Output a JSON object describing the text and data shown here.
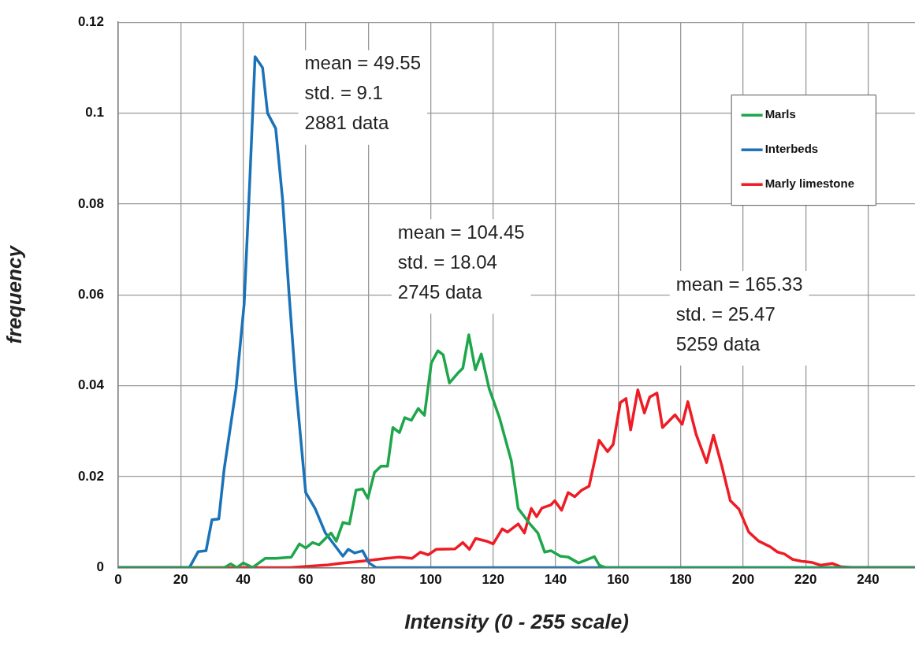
{
  "chart_data": {
    "type": "line",
    "xlabel": "Intensity (0 - 255 scale)",
    "ylabel": "frequency",
    "xlim": [
      0,
      255
    ],
    "xticks": [
      0,
      20,
      40,
      60,
      80,
      100,
      120,
      140,
      160,
      180,
      200,
      220,
      240
    ],
    "ylim": [
      0,
      0.12
    ],
    "yticks": [
      0,
      0.02,
      0.04,
      0.06,
      0.08,
      0.1,
      0.12
    ],
    "grid": true,
    "legend": "top right",
    "marker": "none",
    "line_style": "solid",
    "annotations": [
      "mean = 49.55\nstd. = 9.1\n2881 data",
      "mean = 104.45\nstd. = 18.04\n2745 data",
      "mean = 165.33\nstd. = 25.47\n5259 data"
    ],
    "series": [
      {
        "name": "Marls",
        "color": "#1ea64b",
        "x": [
          0,
          34,
          36,
          38,
          40,
          43,
          47,
          50.4,
          55.4,
          58,
          60,
          62.2,
          64.3,
          68.1,
          69.8,
          71.9,
          74,
          76.1,
          78.2,
          79.9,
          82,
          84.1,
          86.2,
          87.9,
          90,
          91.7,
          93.8,
          96,
          98,
          100.2,
          102.3,
          104,
          106,
          108.6,
          110.3,
          112.2,
          114.3,
          116.2,
          118.7,
          122,
          125.8,
          128,
          131.4,
          134.3,
          136.5,
          138.5,
          141.5,
          144,
          147.3,
          152.4,
          154,
          156,
          255
        ],
        "values": [
          0,
          0,
          0.0008,
          0,
          0.001,
          0,
          0.002,
          0.002,
          0.0023,
          0.0052,
          0.0043,
          0.0055,
          0.005,
          0.0076,
          0.0058,
          0.0099,
          0.0096,
          0.017,
          0.0173,
          0.0152,
          0.0209,
          0.0223,
          0.0223,
          0.0308,
          0.0297,
          0.033,
          0.0324,
          0.035,
          0.0335,
          0.045,
          0.0477,
          0.0468,
          0.0406,
          0.0427,
          0.0439,
          0.0512,
          0.0435,
          0.047,
          0.0394,
          0.033,
          0.0235,
          0.013,
          0.0099,
          0.0076,
          0.0034,
          0.0037,
          0.0025,
          0.0023,
          0.001,
          0.0024,
          0.0005,
          0,
          0
        ]
      },
      {
        "name": "Interbeds",
        "color": "#1a72b8",
        "x": [
          0,
          22.8,
          25.6,
          28.1,
          30,
          32.2,
          33.9,
          37.7,
          40.3,
          42.1,
          43.8,
          46.2,
          47.8,
          50.4,
          52.6,
          54.7,
          56.9,
          60,
          63,
          66.3,
          71.9,
          73.6,
          75.7,
          78.2,
          80.3,
          82.5,
          255
        ],
        "values": [
          0,
          0,
          0.0035,
          0.0037,
          0.0105,
          0.0107,
          0.0216,
          0.0393,
          0.058,
          0.085,
          0.1124,
          0.11,
          0.1,
          0.0966,
          0.081,
          0.06,
          0.0396,
          0.0165,
          0.013,
          0.0076,
          0.0025,
          0.004,
          0.0032,
          0.0037,
          0.001,
          0,
          0
        ]
      },
      {
        "name": "Marly limestone",
        "color": "#ee1c25",
        "x": [
          0,
          55,
          67.3,
          70.6,
          78.2,
          85.8,
          90,
          94,
          96.7,
          99.2,
          101.8,
          107.8,
          110.3,
          112.4,
          114.4,
          117.9,
          120,
          122.9,
          124.6,
          128,
          130,
          132.2,
          133.9,
          135.6,
          138.5,
          139.7,
          141.9,
          144,
          146.1,
          148.3,
          150.7,
          153.9,
          156.6,
          158.4,
          160.7,
          162.5,
          164,
          166.3,
          168.4,
          170.1,
          172.4,
          174.2,
          178.2,
          180.5,
          182.3,
          185,
          188.3,
          190.5,
          193.2,
          195.9,
          198.7,
          201.8,
          205,
          208.6,
          211,
          213.2,
          215.8,
          218.5,
          222.2,
          224.8,
          228.5,
          231.1,
          234.8,
          255
        ],
        "values": [
          0,
          0,
          0.0006,
          0.0009,
          0.0014,
          0.002,
          0.0023,
          0.002,
          0.0034,
          0.0028,
          0.004,
          0.0041,
          0.0055,
          0.004,
          0.0064,
          0.0058,
          0.0052,
          0.0085,
          0.0078,
          0.0096,
          0.0076,
          0.013,
          0.0112,
          0.0131,
          0.0138,
          0.0147,
          0.0126,
          0.0165,
          0.0156,
          0.017,
          0.0179,
          0.028,
          0.0255,
          0.0271,
          0.0363,
          0.0372,
          0.0303,
          0.0391,
          0.034,
          0.0375,
          0.0384,
          0.0308,
          0.0336,
          0.0315,
          0.0365,
          0.0292,
          0.0231,
          0.0291,
          0.0223,
          0.0147,
          0.0128,
          0.0078,
          0.0058,
          0.0046,
          0.0034,
          0.003,
          0.0018,
          0.0014,
          0.0011,
          0.0005,
          0.0009,
          0.0002,
          0,
          0
        ]
      }
    ]
  }
}
